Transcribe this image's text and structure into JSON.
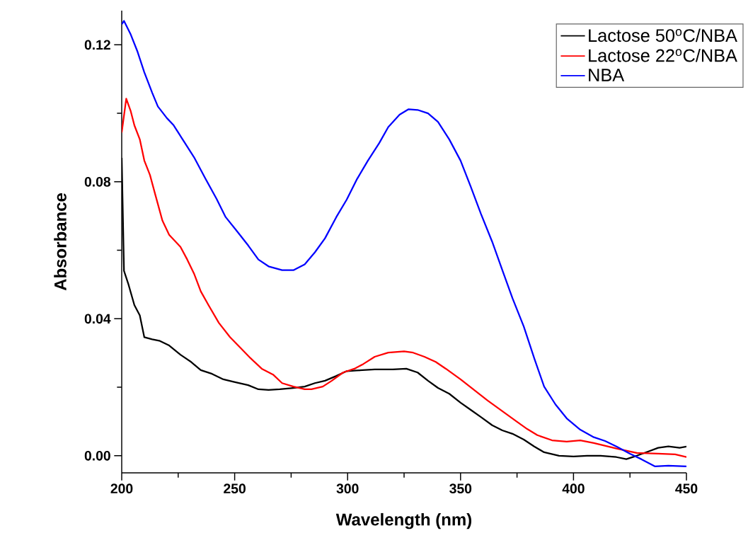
{
  "chart_data": {
    "type": "line",
    "xlabel": "Wavelength (nm)",
    "ylabel": "Absorbance",
    "xlim": [
      200,
      450
    ],
    "ylim": [
      -0.005,
      0.13
    ],
    "xticks": [
      200,
      250,
      300,
      350,
      400,
      450
    ],
    "yticks": [
      {
        "value": 0,
        "label": "0.00"
      },
      {
        "value": 0.04,
        "label": "0.04"
      },
      {
        "value": 0.08,
        "label": "0.08"
      },
      {
        "value": 0.12,
        "label": "0.12"
      }
    ],
    "legend": "top right",
    "grid": false,
    "marker": "none",
    "line_style": "solid",
    "series": [
      {
        "name": "Lactose 50$^{o}$C/NBA",
        "color": "#000000",
        "x": [
          200,
          201,
          203,
          205.6,
          208,
          210,
          213.5,
          216.6,
          221,
          226,
          230.7,
          235,
          240,
          245,
          249.5,
          256,
          260.5,
          265,
          270,
          276,
          281,
          285.5,
          290,
          295,
          299.6,
          304,
          312,
          320,
          326,
          331,
          335.6,
          340,
          345,
          350,
          354.5,
          359,
          364,
          368.5,
          373,
          378,
          382.6,
          387,
          393.6,
          400,
          406,
          412,
          419,
          423.4,
          428,
          433,
          437.5,
          442,
          447,
          450
        ],
        "values": [
          0.087,
          0.054,
          0.05,
          0.044,
          0.041,
          0.0346,
          0.034,
          0.0336,
          0.0322,
          0.0295,
          0.0274,
          0.025,
          0.0239,
          0.0223,
          0.0216,
          0.0206,
          0.0194,
          0.0192,
          0.0194,
          0.0198,
          0.0202,
          0.0212,
          0.0219,
          0.0233,
          0.0247,
          0.0249,
          0.0252,
          0.0252,
          0.0254,
          0.0243,
          0.0219,
          0.0198,
          0.0181,
          0.0155,
          0.0134,
          0.0113,
          0.0089,
          0.0074,
          0.0064,
          0.0047,
          0.0027,
          0.001,
          0,
          -0.0002,
          0,
          0,
          -0.0004,
          -0.001,
          0,
          0.0012,
          0.0023,
          0.0027,
          0.0023,
          0.0027
        ]
      },
      {
        "name": "Lactose 22$^{o}$C/NBA",
        "color": "#ff0000",
        "x": [
          200,
          202,
          204,
          205.6,
          208,
          210,
          212.5,
          215,
          218,
          221,
          226,
          229,
          232,
          235,
          238.5,
          243,
          248,
          252.6,
          257,
          262,
          267,
          271,
          276,
          281,
          284,
          289,
          293,
          298,
          303,
          307,
          312,
          318,
          325,
          329,
          334,
          339,
          343.5,
          350,
          356,
          362,
          368.5,
          375,
          379.5,
          384,
          390.5,
          397,
          403,
          409,
          419,
          428,
          437.5,
          445,
          450
        ],
        "values": [
          0.0944,
          0.1043,
          0.1006,
          0.0965,
          0.0924,
          0.0862,
          0.082,
          0.0759,
          0.0687,
          0.0645,
          0.061,
          0.0573,
          0.0532,
          0.048,
          0.0439,
          0.0388,
          0.0346,
          0.0315,
          0.0285,
          0.0254,
          0.0237,
          0.0212,
          0.0202,
          0.0194,
          0.0194,
          0.0202,
          0.0219,
          0.0243,
          0.0254,
          0.0268,
          0.0289,
          0.0301,
          0.0305,
          0.0301,
          0.0289,
          0.0274,
          0.0254,
          0.0223,
          0.0192,
          0.0161,
          0.013,
          0.0099,
          0.0078,
          0.006,
          0.0045,
          0.0041,
          0.0045,
          0.0037,
          0.0021,
          0.0008,
          0.0006,
          0.0004,
          -0.0004
        ]
      },
      {
        "name": "NBA",
        "color": "#0000ff",
        "x": [
          200,
          201,
          204,
          207,
          210,
          213.5,
          216,
          220,
          223,
          228,
          232,
          237,
          242,
          246,
          251,
          256,
          260.5,
          265,
          271,
          276,
          281,
          285.5,
          290,
          295,
          299.6,
          304,
          309,
          314,
          318,
          323,
          327,
          331,
          335.6,
          340,
          345,
          350,
          354.5,
          359,
          364,
          368.5,
          373,
          378,
          382.6,
          387,
          392,
          397,
          403,
          409,
          414,
          419,
          425,
          430,
          436,
          442,
          450
        ],
        "values": [
          0.126,
          0.127,
          0.123,
          0.118,
          0.112,
          0.106,
          0.102,
          0.0986,
          0.0965,
          0.0913,
          0.0872,
          0.081,
          0.075,
          0.0697,
          0.0656,
          0.0614,
          0.0573,
          0.0553,
          0.0542,
          0.0542,
          0.0559,
          0.0594,
          0.0635,
          0.0697,
          0.0748,
          0.0806,
          0.0862,
          0.0913,
          0.096,
          0.0996,
          0.1012,
          0.101,
          0.1,
          0.0975,
          0.0924,
          0.0862,
          0.0786,
          0.0707,
          0.0625,
          0.0542,
          0.046,
          0.0377,
          0.0285,
          0.0202,
          0.015,
          0.0109,
          0.0076,
          0.0054,
          0.0043,
          0.0027,
          0.0006,
          -0.001,
          -0.0031,
          -0.0029,
          -0.0031
        ]
      }
    ]
  }
}
